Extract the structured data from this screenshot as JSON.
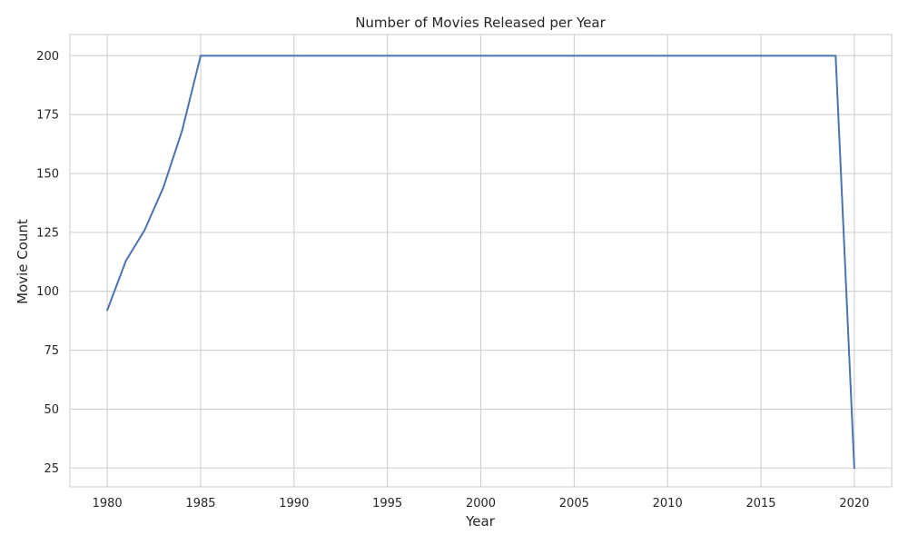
{
  "chart_data": {
    "type": "line",
    "title": "Number of Movies Released per Year",
    "xlabel": "Year",
    "ylabel": "Movie Count",
    "xlim": [
      1978,
      2022
    ],
    "ylim": [
      17,
      209
    ],
    "x_ticks": [
      1980,
      1985,
      1990,
      1995,
      2000,
      2005,
      2010,
      2015,
      2020
    ],
    "y_ticks": [
      25,
      50,
      75,
      100,
      125,
      150,
      175,
      200
    ],
    "grid": true,
    "series": [
      {
        "color": "#4c72b0",
        "x": [
          1980,
          1981,
          1982,
          1983,
          1984,
          1985,
          1986,
          1987,
          1988,
          1989,
          1990,
          1991,
          1992,
          1993,
          1994,
          1995,
          1996,
          1997,
          1998,
          1999,
          2000,
          2001,
          2002,
          2003,
          2004,
          2005,
          2006,
          2007,
          2008,
          2009,
          2010,
          2011,
          2012,
          2013,
          2014,
          2015,
          2016,
          2017,
          2018,
          2019,
          2020
        ],
        "values": [
          92,
          113,
          126,
          144,
          168,
          200,
          200,
          200,
          200,
          200,
          200,
          200,
          200,
          200,
          200,
          200,
          200,
          200,
          200,
          200,
          200,
          200,
          200,
          200,
          200,
          200,
          200,
          200,
          200,
          200,
          200,
          200,
          200,
          200,
          200,
          200,
          200,
          200,
          200,
          200,
          25
        ]
      }
    ]
  },
  "colors": {
    "line": "#4c72b0",
    "grid": "#cfcfcf",
    "text": "#262626",
    "background": "#ffffff"
  }
}
